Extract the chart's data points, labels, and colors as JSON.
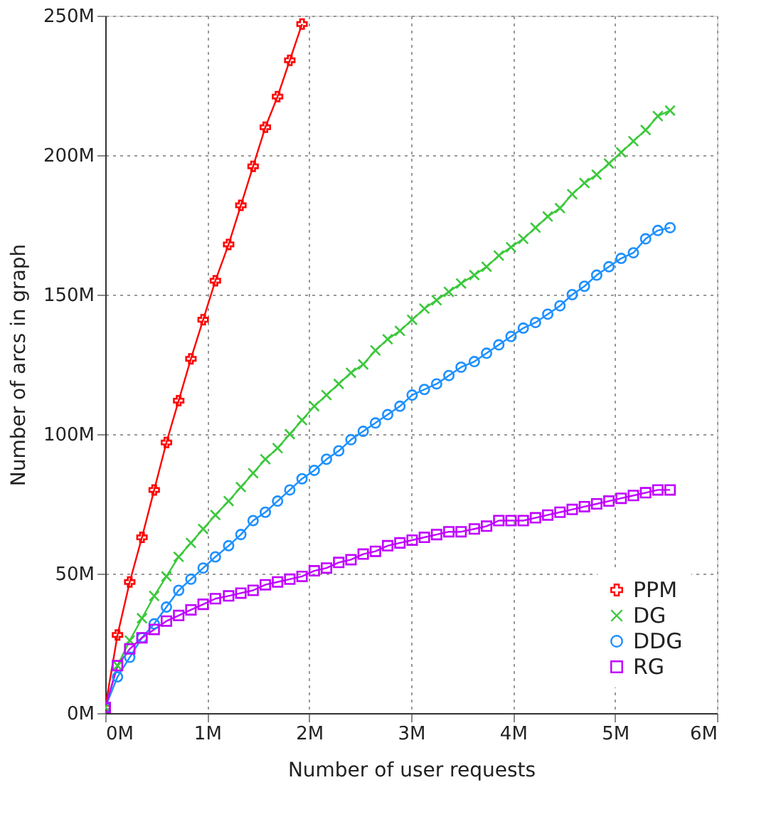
{
  "chart_data": {
    "type": "line",
    "xlabel": "Number of user requests",
    "ylabel": "Number of arcs in graph",
    "x": [
      0,
      0.12,
      0.24,
      0.36,
      0.48,
      0.6,
      0.72,
      0.84,
      0.96,
      1.08,
      1.21,
      1.33,
      1.45,
      1.57,
      1.69,
      1.81,
      1.93,
      2.05,
      2.17,
      2.29,
      2.41,
      2.53,
      2.65,
      2.77,
      2.89,
      3.01,
      3.13,
      3.25,
      3.37,
      3.49,
      3.62,
      3.74,
      3.86,
      3.98,
      4.1,
      4.22,
      4.34,
      4.46,
      4.58,
      4.7,
      4.82,
      4.94,
      5.06,
      5.18,
      5.3,
      5.42,
      5.54
    ],
    "series": [
      {
        "name": "PPM",
        "color": "#ff0000",
        "marker": "plus",
        "x": [
          0,
          0.12,
          0.24,
          0.36,
          0.48,
          0.6,
          0.72,
          0.84,
          0.96,
          1.08,
          1.21,
          1.33,
          1.45,
          1.57,
          1.69,
          1.81,
          1.93
        ],
        "values": [
          2,
          28,
          47,
          63,
          80,
          97,
          112,
          127,
          141,
          155,
          168,
          182,
          196,
          210,
          221,
          234,
          247
        ]
      },
      {
        "name": "DG",
        "color": "#3cc83c",
        "marker": "cross",
        "values": [
          2,
          17,
          26,
          34,
          42,
          49,
          56,
          61,
          66,
          71,
          76,
          81,
          86,
          91,
          95,
          100,
          105,
          110,
          114,
          118,
          122,
          125,
          130,
          134,
          137,
          141,
          145,
          148,
          151,
          154,
          157,
          160,
          164,
          167,
          170,
          174,
          178,
          181,
          186,
          190,
          193,
          197,
          201,
          205,
          209,
          214,
          216
        ]
      },
      {
        "name": "DDG",
        "color": "#1e90ff",
        "marker": "circle",
        "values": [
          2,
          13,
          20,
          27,
          32,
          38,
          44,
          48,
          52,
          56,
          60,
          64,
          69,
          72,
          76,
          80,
          84,
          87,
          91,
          94,
          98,
          101,
          104,
          107,
          110,
          114,
          116,
          118,
          121,
          124,
          126,
          129,
          132,
          135,
          138,
          140,
          143,
          146,
          150,
          153,
          157,
          160,
          163,
          165,
          170,
          173,
          174
        ]
      },
      {
        "name": "RG",
        "color": "#c000ff",
        "marker": "square",
        "values": [
          2,
          17,
          23,
          27,
          30,
          33,
          35,
          37,
          39,
          41,
          42,
          43,
          44,
          46,
          47,
          48,
          49,
          51,
          52,
          54,
          55,
          57,
          58,
          60,
          61,
          62,
          63,
          64,
          65,
          65,
          66,
          67,
          69,
          69,
          69,
          70,
          71,
          72,
          73,
          74,
          75,
          76,
          77,
          78,
          79,
          80,
          80
        ]
      }
    ],
    "xlim": [
      0,
      6
    ],
    "xticks": [
      {
        "value": 0,
        "label": "0M"
      },
      {
        "value": 1,
        "label": "1M"
      },
      {
        "value": 2,
        "label": "2M"
      },
      {
        "value": 3,
        "label": "3M"
      },
      {
        "value": 4,
        "label": "4M"
      },
      {
        "value": 5,
        "label": "5M"
      },
      {
        "value": 6,
        "label": "6M"
      }
    ],
    "ylim": [
      0,
      250
    ],
    "yticks": [
      {
        "value": 0,
        "label": "0M"
      },
      {
        "value": 50,
        "label": "50M"
      },
      {
        "value": 100,
        "label": "100M"
      },
      {
        "value": 150,
        "label": "150M"
      },
      {
        "value": 200,
        "label": "200M"
      },
      {
        "value": 250,
        "label": "250M"
      }
    ],
    "grid": true,
    "legend": "bottom right",
    "line_style": "solid"
  }
}
